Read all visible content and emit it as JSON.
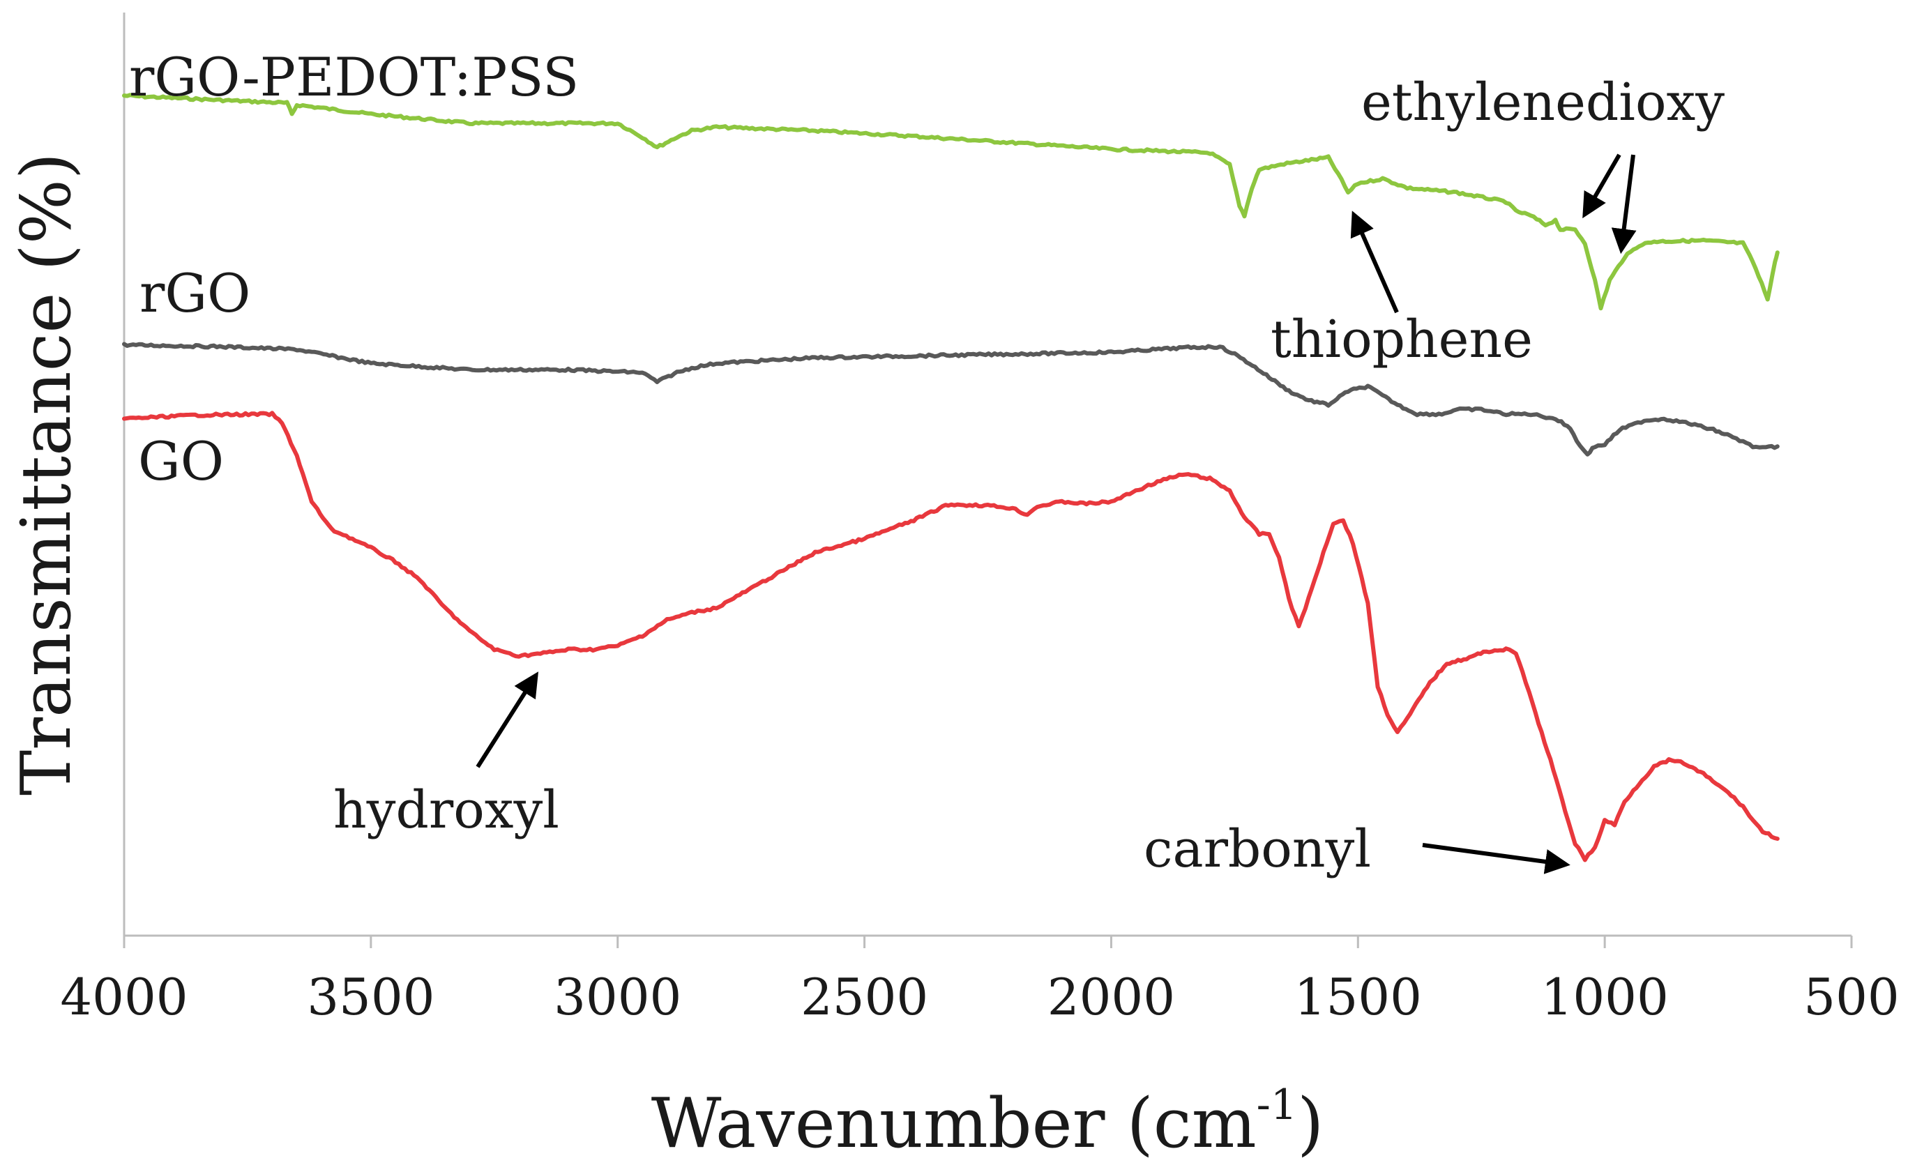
{
  "chart_data": {
    "type": "line",
    "title": "",
    "xlabel": "Wavenumber (cm",
    "xlabel_sup": "-1",
    "xlabel_close": ")",
    "ylabel": "Transmittance (%)",
    "xlim": [
      4000,
      500
    ],
    "ylim": [
      0,
      100
    ],
    "x_ticks": [
      4000,
      3500,
      3000,
      2500,
      2000,
      1500,
      1000,
      500
    ],
    "x_tick_labels": [
      "4000",
      "3500",
      "3000",
      "2500",
      "2000",
      "1500",
      "1000",
      "500"
    ],
    "y_ticks_shown": false,
    "series": [
      {
        "name": "rGO-PEDOT:PSS",
        "color": "#8dc63f",
        "points": [
          [
            4000,
            91
          ],
          [
            3800,
            90.5
          ],
          [
            3670,
            90.2
          ],
          [
            3660,
            89
          ],
          [
            3650,
            90
          ],
          [
            3500,
            89
          ],
          [
            3300,
            88
          ],
          [
            3100,
            88
          ],
          [
            3000,
            88
          ],
          [
            2950,
            86.5
          ],
          [
            2920,
            85.4
          ],
          [
            2880,
            86.5
          ],
          [
            2850,
            87.2
          ],
          [
            2800,
            87.6
          ],
          [
            2600,
            87.2
          ],
          [
            2400,
            86.6
          ],
          [
            2200,
            85.9
          ],
          [
            2000,
            85.2
          ],
          [
            1800,
            84.8
          ],
          [
            1760,
            83.5
          ],
          [
            1740,
            79
          ],
          [
            1730,
            78
          ],
          [
            1715,
            81
          ],
          [
            1700,
            83
          ],
          [
            1650,
            83.6
          ],
          [
            1600,
            84
          ],
          [
            1560,
            84.3
          ],
          [
            1540,
            82.5
          ],
          [
            1520,
            80.5
          ],
          [
            1500,
            81.5
          ],
          [
            1450,
            82
          ],
          [
            1400,
            81
          ],
          [
            1300,
            80.5
          ],
          [
            1200,
            79.5
          ],
          [
            1180,
            78.5
          ],
          [
            1150,
            78
          ],
          [
            1120,
            77
          ],
          [
            1100,
            77.5
          ],
          [
            1090,
            76.5
          ],
          [
            1060,
            76.5
          ],
          [
            1040,
            75
          ],
          [
            1020,
            71
          ],
          [
            1008,
            68
          ],
          [
            990,
            71
          ],
          [
            960,
            73.5
          ],
          [
            930,
            74.8
          ],
          [
            900,
            75.2
          ],
          [
            800,
            75.3
          ],
          [
            720,
            75
          ],
          [
            700,
            73
          ],
          [
            670,
            69
          ],
          [
            655,
            73
          ],
          [
            650,
            74
          ]
        ]
      },
      {
        "name": "rGO",
        "color": "#595959",
        "points": [
          [
            4000,
            64
          ],
          [
            3800,
            63.8
          ],
          [
            3650,
            63.5
          ],
          [
            3500,
            62
          ],
          [
            3300,
            61.3
          ],
          [
            3100,
            61.3
          ],
          [
            2950,
            61
          ],
          [
            2920,
            60
          ],
          [
            2880,
            61
          ],
          [
            2850,
            61.5
          ],
          [
            2800,
            62
          ],
          [
            2600,
            62.6
          ],
          [
            2400,
            62.8
          ],
          [
            2200,
            63
          ],
          [
            2000,
            63.2
          ],
          [
            1850,
            63.7
          ],
          [
            1780,
            63.8
          ],
          [
            1750,
            63
          ],
          [
            1720,
            62
          ],
          [
            1680,
            60.5
          ],
          [
            1640,
            59
          ],
          [
            1600,
            58
          ],
          [
            1560,
            57.5
          ],
          [
            1520,
            59
          ],
          [
            1480,
            59.5
          ],
          [
            1450,
            58.5
          ],
          [
            1420,
            57.5
          ],
          [
            1380,
            56.5
          ],
          [
            1330,
            56.5
          ],
          [
            1300,
            57
          ],
          [
            1250,
            57
          ],
          [
            1200,
            56.5
          ],
          [
            1150,
            56.5
          ],
          [
            1100,
            56
          ],
          [
            1070,
            55
          ],
          [
            1050,
            53
          ],
          [
            1035,
            52.2
          ],
          [
            1020,
            53
          ],
          [
            1000,
            53.2
          ],
          [
            970,
            54.8
          ],
          [
            920,
            55.8
          ],
          [
            880,
            56
          ],
          [
            830,
            55.5
          ],
          [
            780,
            54.8
          ],
          [
            740,
            54
          ],
          [
            720,
            53.5
          ],
          [
            700,
            53
          ],
          [
            680,
            52.8
          ],
          [
            650,
            53
          ]
        ]
      },
      {
        "name": "GO",
        "color": "#e8383d",
        "points": [
          [
            4000,
            56
          ],
          [
            3850,
            56.4
          ],
          [
            3700,
            56.5
          ],
          [
            3680,
            55.5
          ],
          [
            3650,
            52
          ],
          [
            3620,
            47
          ],
          [
            3580,
            44
          ],
          [
            3550,
            43.3
          ],
          [
            3500,
            42
          ],
          [
            3450,
            40.5
          ],
          [
            3400,
            38.5
          ],
          [
            3350,
            35.5
          ],
          [
            3300,
            33
          ],
          [
            3250,
            31
          ],
          [
            3200,
            30.3
          ],
          [
            3150,
            30.6
          ],
          [
            3100,
            31
          ],
          [
            3050,
            31
          ],
          [
            3000,
            31.4
          ],
          [
            2950,
            32.5
          ],
          [
            2900,
            34.2
          ],
          [
            2850,
            35
          ],
          [
            2800,
            35.5
          ],
          [
            2700,
            38.5
          ],
          [
            2600,
            41.5
          ],
          [
            2500,
            43
          ],
          [
            2400,
            45
          ],
          [
            2330,
            46.7
          ],
          [
            2250,
            46.6
          ],
          [
            2200,
            46.3
          ],
          [
            2170,
            45.6
          ],
          [
            2150,
            46.5
          ],
          [
            2100,
            47
          ],
          [
            2050,
            46.8
          ],
          [
            2000,
            47
          ],
          [
            1950,
            48.2
          ],
          [
            1900,
            49.3
          ],
          [
            1850,
            50
          ],
          [
            1800,
            49.5
          ],
          [
            1760,
            48.2
          ],
          [
            1730,
            45.3
          ],
          [
            1700,
            43.5
          ],
          [
            1680,
            43.5
          ],
          [
            1660,
            41
          ],
          [
            1640,
            36.5
          ],
          [
            1620,
            33.5
          ],
          [
            1600,
            36.5
          ],
          [
            1570,
            41.5
          ],
          [
            1550,
            44.7
          ],
          [
            1530,
            45
          ],
          [
            1510,
            42.5
          ],
          [
            1480,
            36
          ],
          [
            1460,
            27
          ],
          [
            1440,
            24
          ],
          [
            1420,
            22
          ],
          [
            1400,
            23.5
          ],
          [
            1360,
            27
          ],
          [
            1320,
            29.5
          ],
          [
            1280,
            30
          ],
          [
            1240,
            30.8
          ],
          [
            1200,
            31
          ],
          [
            1180,
            30.6
          ],
          [
            1160,
            27.5
          ],
          [
            1140,
            24
          ],
          [
            1110,
            19
          ],
          [
            1080,
            13.5
          ],
          [
            1060,
            10
          ],
          [
            1040,
            8.3
          ],
          [
            1020,
            9.5
          ],
          [
            1000,
            12.5
          ],
          [
            980,
            12
          ],
          [
            960,
            14.5
          ],
          [
            930,
            16.5
          ],
          [
            900,
            18.3
          ],
          [
            870,
            19
          ],
          [
            840,
            18.7
          ],
          [
            800,
            17.5
          ],
          [
            750,
            15.5
          ],
          [
            720,
            14
          ],
          [
            700,
            12.5
          ],
          [
            680,
            11.3
          ],
          [
            650,
            10.5
          ]
        ]
      }
    ],
    "series_labels": [
      "rGO-PEDOT:PSS",
      "rGO",
      "GO"
    ],
    "annotations": [
      {
        "text": "ethylenedioxy",
        "arrows_to": [
          [
            1055,
            76.8
          ],
          [
            970,
            72.8
          ]
        ]
      },
      {
        "text": "thiophene",
        "arrows_to": [
          [
            1520,
            79.5
          ]
        ]
      },
      {
        "text": "hydroxyl",
        "arrows_to": [
          [
            3150,
            29.5
          ]
        ]
      },
      {
        "text": "carbonyl",
        "arrows_to": [
          [
            1050,
            7.5
          ]
        ]
      }
    ],
    "grid": false,
    "legend": "none (inline series labels)"
  }
}
